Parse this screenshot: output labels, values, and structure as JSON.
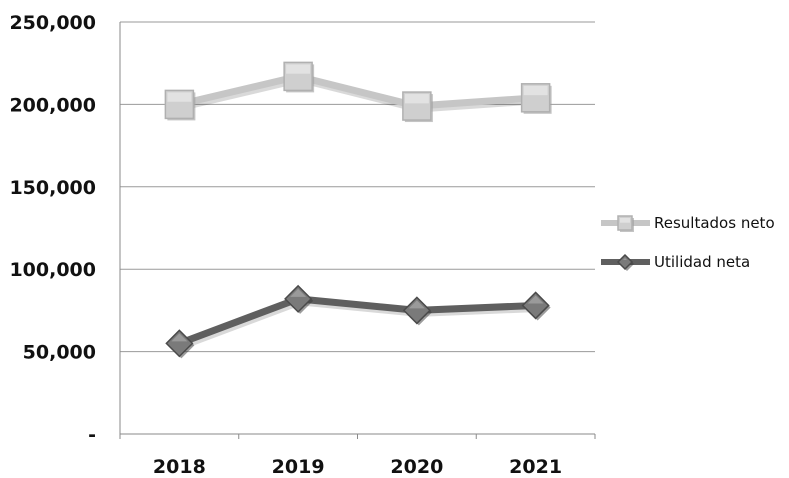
{
  "chart_data": {
    "type": "line",
    "categories": [
      "2018",
      "2019",
      "2020",
      "2021"
    ],
    "y_tick_labels": [
      "-",
      "50,000",
      "100,000",
      "150,000",
      "200,000",
      "250,000"
    ],
    "y_ticks": [
      0,
      50000,
      100000,
      150000,
      200000,
      250000
    ],
    "ylim": [
      0,
      250000
    ],
    "grid": "horizontal",
    "legend_position": "right",
    "series": [
      {
        "name": "Resultados neto",
        "values": [
          200000,
          217000,
          199000,
          204000
        ],
        "line_color": "#c6c6c6",
        "marker_color": "#cfcfcf",
        "marker": "square"
      },
      {
        "name": "Utilidad neta",
        "values": [
          55000,
          82000,
          75000,
          78000
        ],
        "line_color": "#5f5f5f",
        "marker_color": "#7a7a7a",
        "marker": "diamond"
      }
    ]
  }
}
